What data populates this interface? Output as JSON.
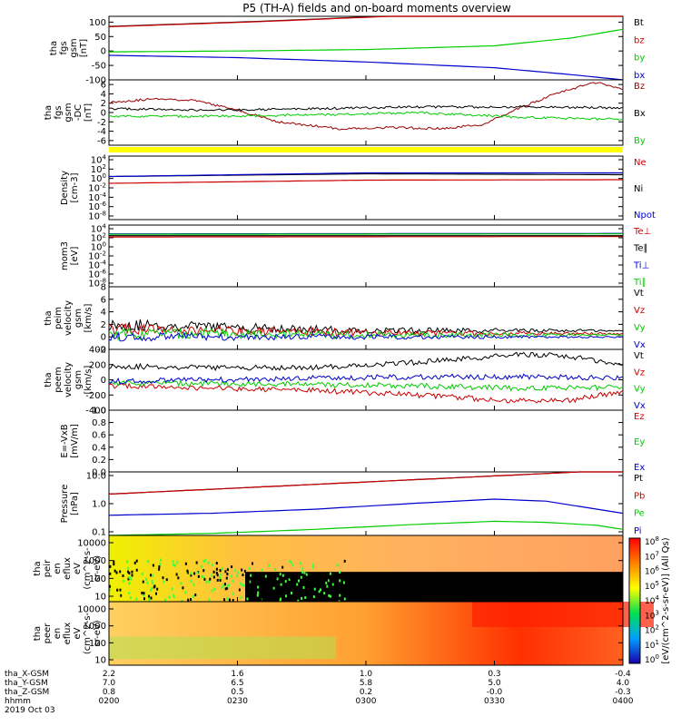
{
  "title": "P5 (TH-A) fields and on-board moments overview",
  "chart_data": [
    {
      "type": "line",
      "ylabel": [
        "tha",
        "fgs",
        "gsm",
        "[nT]"
      ],
      "yticks": [
        100,
        50,
        0,
        -50,
        -100
      ],
      "ylim": [
        -100,
        120
      ],
      "legend": [
        {
          "name": "Bt",
          "color": "#000000"
        },
        {
          "name": "bz",
          "color": "#cc0000"
        },
        {
          "name": "by",
          "color": "#00cc00"
        },
        {
          "name": "bx",
          "color": "#0000cc"
        }
      ],
      "series": [
        {
          "name": "Bt",
          "color": "#000000",
          "x": [
            0,
            0.3,
            0.6,
            1
          ],
          "y": [
            85,
            103,
            125,
            140
          ]
        },
        {
          "name": "bz",
          "color": "#cc0000",
          "x": [
            0,
            0.3,
            0.6,
            1
          ],
          "y": [
            84,
            102,
            124,
            139
          ]
        },
        {
          "name": "by",
          "color": "#00cc00",
          "x": [
            0,
            0.25,
            0.5,
            0.75,
            0.9,
            1
          ],
          "y": [
            -3,
            0,
            5,
            18,
            45,
            75
          ]
        },
        {
          "name": "bx",
          "color": "#0000cc",
          "x": [
            0,
            0.25,
            0.5,
            0.75,
            0.9,
            1
          ],
          "y": [
            -15,
            -23,
            -38,
            -58,
            -82,
            -100
          ]
        }
      ]
    },
    {
      "type": "line",
      "ylabel": [
        "tha",
        "fgs",
        "gsm",
        "-DC",
        "[nT]"
      ],
      "yticks": [
        6,
        4,
        2,
        0,
        -2,
        -4,
        -6
      ],
      "ylim": [
        -7,
        7
      ],
      "legend": [
        {
          "name": "Bz",
          "color": "#990000"
        },
        {
          "name": "Bx",
          "color": "#000000"
        },
        {
          "name": "By",
          "color": "#00cc00"
        }
      ],
      "series": [
        {
          "name": "Bz",
          "color": "#990000",
          "x": [
            0,
            0.1,
            0.17,
            0.25,
            0.33,
            0.45,
            0.55,
            0.65,
            0.73,
            0.8,
            0.88,
            0.95,
            1
          ],
          "y": [
            2.2,
            3,
            2.5,
            0.5,
            -2,
            -3.5,
            -3.2,
            -3.5,
            -2.5,
            1,
            4.5,
            6.5,
            5
          ]
        },
        {
          "name": "Bx",
          "color": "#000000",
          "x": [
            0,
            0.2,
            0.4,
            0.6,
            0.8,
            1
          ],
          "y": [
            0.8,
            0.5,
            0.8,
            1.2,
            1.2,
            1
          ]
        },
        {
          "name": "By",
          "color": "#00cc00",
          "x": [
            0,
            0.2,
            0.4,
            0.6,
            0.8,
            1
          ],
          "y": [
            -0.8,
            -0.8,
            -0.5,
            0,
            -1,
            -1.5
          ]
        }
      ]
    },
    {
      "type": "line",
      "ylabel": [
        "Density",
        "[cm-3]"
      ],
      "ylog": true,
      "yticks": [
        "10^4",
        "10^2",
        "10^0",
        "10^-2",
        "10^-4",
        "10^-6",
        "10^-8"
      ],
      "ylim": [
        -9,
        5
      ],
      "legend": [
        {
          "name": "Ne",
          "color": "#cc0000"
        },
        {
          "name": "Ni",
          "color": "#000000"
        },
        {
          "name": "Npot",
          "color": "#0000cc"
        }
      ],
      "series": [
        {
          "name": "Ne",
          "color": "#cc0000",
          "x": [
            0,
            0.5,
            1
          ],
          "y": [
            -1,
            -0.3,
            -0.2
          ]
        },
        {
          "name": "Ni",
          "color": "#000000",
          "x": [
            0,
            0.5,
            1
          ],
          "y": [
            0.5,
            1.1,
            0.9
          ]
        },
        {
          "name": "Npot",
          "color": "#0000cc",
          "x": [
            0,
            0.5,
            1
          ],
          "y": [
            0.5,
            1.3,
            1.3
          ]
        }
      ]
    },
    {
      "type": "line",
      "ylabel": [
        "mom3",
        "[eV]"
      ],
      "ylog": true,
      "yticks": [
        "10^4",
        "10^2",
        "10^0",
        "10^-2",
        "10^-4",
        "10^-6",
        "10^-8"
      ],
      "ylim": [
        -9,
        5
      ],
      "legend": [
        {
          "name": "Te⊥",
          "color": "#cc0000"
        },
        {
          "name": "Te∥",
          "color": "#000000"
        },
        {
          "name": "Ti⊥",
          "color": "#0000cc"
        },
        {
          "name": "Ti∥",
          "color": "#00cc00"
        }
      ],
      "series": [
        {
          "name": "Te⊥",
          "color": "#cc0000",
          "x": [
            0,
            1
          ],
          "y": [
            2.3,
            2.4
          ]
        },
        {
          "name": "Te∥",
          "color": "#000000",
          "x": [
            0,
            1
          ],
          "y": [
            2.6,
            2.6
          ]
        },
        {
          "name": "Ti⊥",
          "color": "#0000cc",
          "x": [
            0,
            1
          ],
          "y": [
            3.0,
            3.1
          ]
        },
        {
          "name": "Ti∥",
          "color": "#00cc00",
          "x": [
            0,
            1
          ],
          "y": [
            2.9,
            3.0
          ]
        }
      ]
    },
    {
      "type": "line",
      "ylabel": [
        "tha",
        "peim",
        "velocity",
        "gsm",
        "[km/s]"
      ],
      "yticks": [
        8,
        6,
        4,
        2,
        0,
        -2
      ],
      "ylim": [
        -2,
        8
      ],
      "legend": [
        {
          "name": "Vt",
          "color": "#000000"
        },
        {
          "name": "Vz",
          "color": "#cc0000"
        },
        {
          "name": "Vy",
          "color": "#00cc00"
        },
        {
          "name": "Vx",
          "color": "#0000cc"
        }
      ],
      "series": [
        {
          "name": "Vt",
          "color": "#000000",
          "x": [
            0,
            0.25,
            0.5,
            1
          ],
          "y": [
            2,
            1.5,
            1,
            1
          ]
        },
        {
          "name": "Vz",
          "color": "#cc0000",
          "x": [
            0,
            0.25,
            0.5,
            1
          ],
          "y": [
            1.2,
            1,
            0.6,
            0.5
          ]
        },
        {
          "name": "Vy",
          "color": "#00cc00",
          "x": [
            0,
            0.25,
            0.5,
            1
          ],
          "y": [
            0.5,
            0.5,
            0.3,
            0.3
          ]
        },
        {
          "name": "Vx",
          "color": "#0000cc",
          "x": [
            0,
            0.25,
            0.5,
            1
          ],
          "y": [
            0,
            0,
            0,
            0
          ]
        }
      ]
    },
    {
      "type": "line",
      "ylabel": [
        "tha",
        "peem",
        "velocity",
        "gsm",
        "[km/s]"
      ],
      "yticks": [
        400,
        200,
        0,
        -200,
        -400
      ],
      "ylim": [
        -400,
        400
      ],
      "legend": [
        {
          "name": "Vt",
          "color": "#000000"
        },
        {
          "name": "Vz",
          "color": "#cc0000"
        },
        {
          "name": "Vy",
          "color": "#00cc00"
        },
        {
          "name": "Vx",
          "color": "#0000cc"
        }
      ],
      "series": [
        {
          "name": "Vt",
          "color": "#000000",
          "x": [
            0,
            0.2,
            0.4,
            0.6,
            0.8,
            0.88,
            1
          ],
          "y": [
            180,
            160,
            160,
            230,
            330,
            320,
            200
          ]
        },
        {
          "name": "Vz",
          "color": "#cc0000",
          "x": [
            0,
            0.2,
            0.4,
            0.6,
            0.8,
            0.9,
            1
          ],
          "y": [
            -80,
            -110,
            -140,
            -200,
            -280,
            -270,
            -150
          ]
        },
        {
          "name": "Vy",
          "color": "#00cc00",
          "x": [
            0,
            0.2,
            0.4,
            0.6,
            0.8,
            1
          ],
          "y": [
            -40,
            -50,
            -60,
            -80,
            -110,
            -100
          ]
        },
        {
          "name": "Vx",
          "color": "#0000cc",
          "x": [
            0,
            0.2,
            0.4,
            0.6,
            0.8,
            1
          ],
          "y": [
            -20,
            0,
            20,
            40,
            40,
            30
          ]
        }
      ]
    },
    {
      "type": "line",
      "ylabel": [
        "E=-VxB",
        "[mV/m]"
      ],
      "yticks": [
        1.0,
        0.8,
        0.6,
        0.4,
        0.2,
        0.0
      ],
      "ylim": [
        0,
        1
      ],
      "legend": [
        {
          "name": "Ez",
          "color": "#cc0000"
        },
        {
          "name": "Ey",
          "color": "#00cc00"
        },
        {
          "name": "Ex",
          "color": "#0000cc"
        }
      ],
      "series": []
    },
    {
      "type": "line",
      "ylabel": [
        "Pressure",
        "[nPa]"
      ],
      "ylog": true,
      "yticks": [
        "10.0",
        "1.0",
        "0.1"
      ],
      "ylim": [
        -1.6,
        1.55
      ],
      "legend": [
        {
          "name": "Pt",
          "color": "#000000"
        },
        {
          "name": "Pb",
          "color": "#cc0000"
        },
        {
          "name": "Pe",
          "color": "#00cc00"
        },
        {
          "name": "Pi",
          "color": "#0000cc"
        }
      ],
      "series": [
        {
          "name": "Pt",
          "color": "#000000",
          "x": [
            0,
            0.25,
            0.5,
            0.75,
            1
          ],
          "y": [
            0.45,
            0.75,
            1.05,
            1.35,
            1.65
          ]
        },
        {
          "name": "Pb",
          "color": "#cc0000",
          "x": [
            0,
            0.25,
            0.5,
            0.75,
            1
          ],
          "y": [
            0.45,
            0.75,
            1.05,
            1.35,
            1.65
          ]
        },
        {
          "name": "Pi",
          "color": "#0000cc",
          "x": [
            0,
            0.2,
            0.4,
            0.6,
            0.75,
            0.85,
            0.95,
            1
          ],
          "y": [
            -0.6,
            -0.5,
            -0.3,
            0,
            0.2,
            0.1,
            -0.3,
            -0.5
          ]
        },
        {
          "name": "Pe",
          "color": "#00cc00",
          "x": [
            0,
            0.2,
            0.4,
            0.6,
            0.75,
            0.85,
            0.95,
            1
          ],
          "y": [
            -1.6,
            -1.5,
            -1.3,
            -1.05,
            -0.9,
            -0.95,
            -1.1,
            -1.3
          ]
        }
      ]
    },
    {
      "type": "heatmap",
      "ylabel": [
        "tha",
        "peir",
        "en",
        "eflux",
        "eV",
        "(cm^2-s-",
        "sr-eV)"
      ],
      "ylog": true,
      "yticks": [
        "10000",
        "1000",
        "100",
        "10"
      ]
    },
    {
      "type": "heatmap",
      "ylabel": [
        "tha",
        "peer",
        "en",
        "eflux",
        "eV",
        "(cm^2-s-",
        "sr-eV)"
      ],
      "ylog": true,
      "yticks": [
        "10000",
        "1000",
        "100",
        "10"
      ]
    }
  ],
  "colorbar": {
    "ticks": [
      "10^8",
      "10^7",
      "10^6",
      "10^5",
      "10^4",
      "10^3",
      "10^2",
      "10^1",
      "10^0"
    ],
    "label": "[eV/(cm^2-s-sr-eV)] (All Qs)"
  },
  "xaxis": {
    "row_labels": [
      "tha_X-GSM",
      "tha_Y-GSM",
      "tha_Z-GSM",
      "hhmm",
      "2019 Oct 03"
    ],
    "columns": [
      [
        "2.2",
        "7.0",
        "0.8",
        "0200"
      ],
      [
        "1.6",
        "6.5",
        "0.5",
        "0230"
      ],
      [
        "1.0",
        "5.8",
        "0.2",
        "0300"
      ],
      [
        "0.3",
        "5.0",
        "-0.0",
        "0330"
      ],
      [
        "-0.4",
        "4.0",
        "-0.3",
        "0400"
      ]
    ]
  }
}
